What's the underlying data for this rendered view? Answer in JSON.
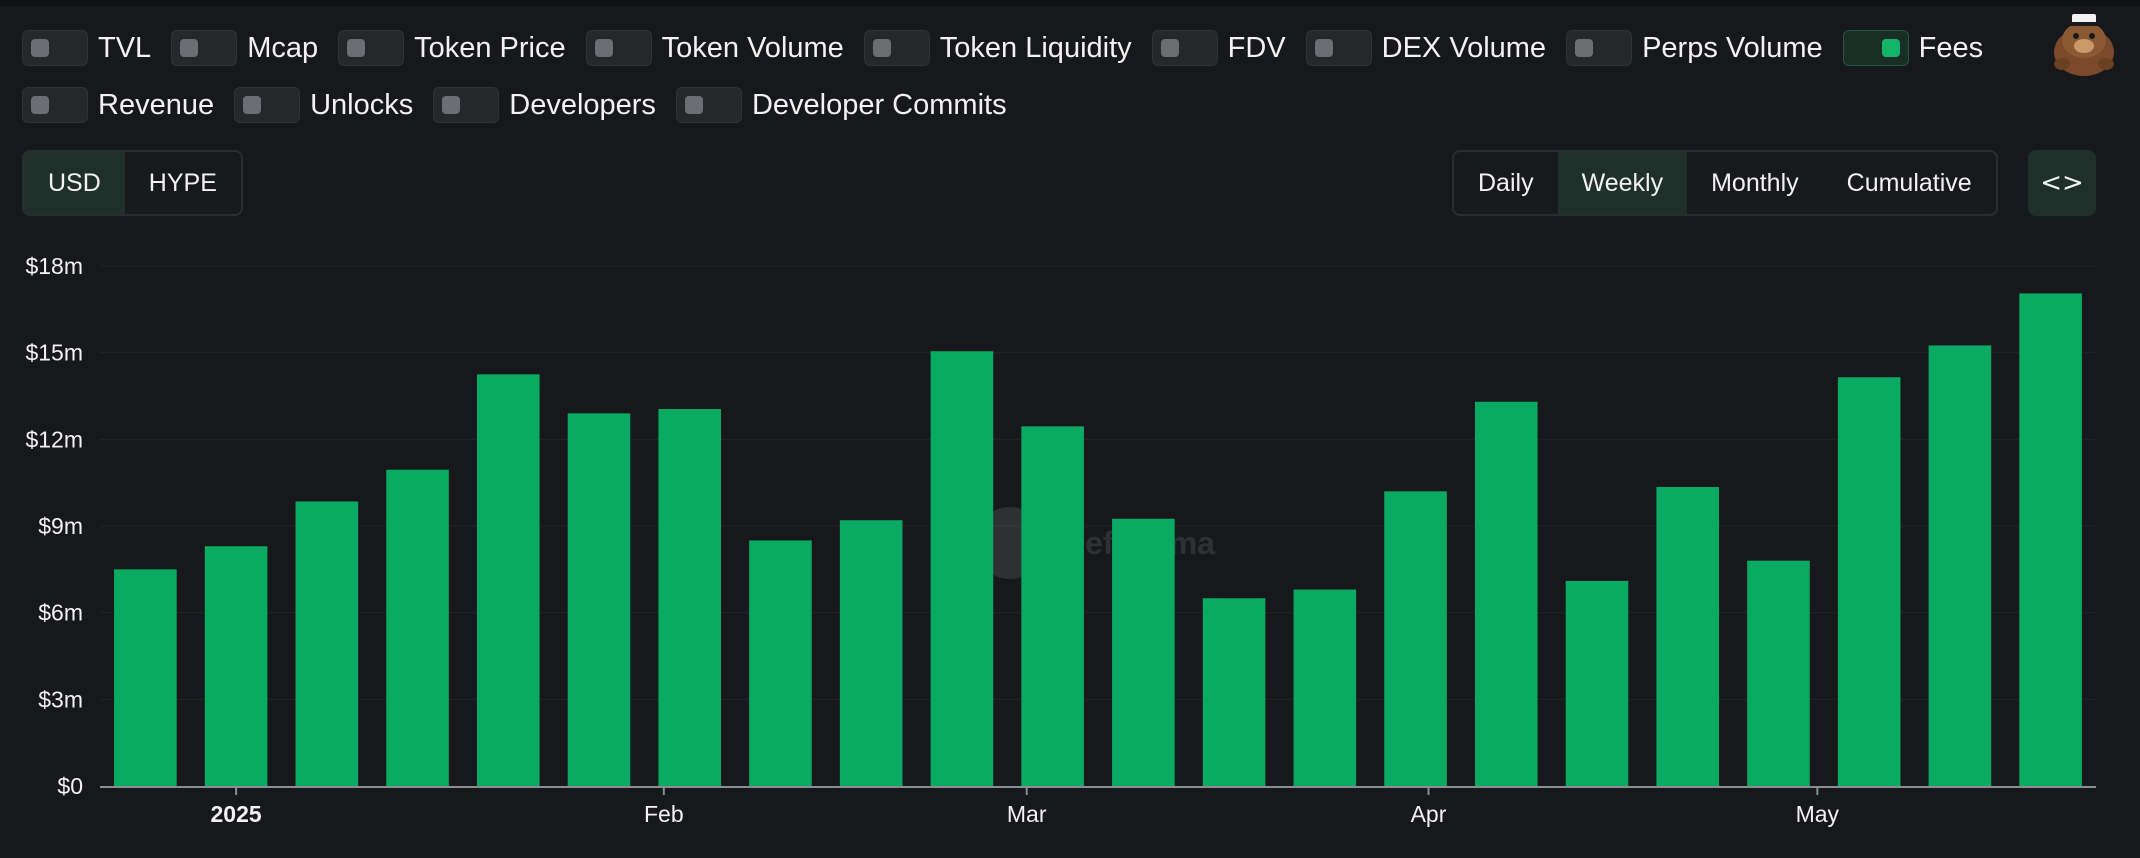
{
  "toggles_row1": [
    {
      "label": "TVL",
      "on": false
    },
    {
      "label": "Mcap",
      "on": false
    },
    {
      "label": "Token Price",
      "on": false
    },
    {
      "label": "Token Volume",
      "on": false
    },
    {
      "label": "Token Liquidity",
      "on": false
    },
    {
      "label": "FDV",
      "on": false
    },
    {
      "label": "DEX Volume",
      "on": false
    },
    {
      "label": "Perps Volume",
      "on": false
    },
    {
      "label": "Fees",
      "on": true
    }
  ],
  "toggles_row2": [
    {
      "label": "Revenue",
      "on": false
    },
    {
      "label": "Unlocks",
      "on": false
    },
    {
      "label": "Developers",
      "on": false
    },
    {
      "label": "Developer Commits",
      "on": false
    }
  ],
  "currency": {
    "options": [
      "USD",
      "HYPE"
    ],
    "selected": "USD"
  },
  "period": {
    "options": [
      "Daily",
      "Weekly",
      "Monthly",
      "Cumulative"
    ],
    "selected": "Weekly"
  },
  "embed_label": "<>",
  "colors": {
    "bar": "#0aaa62",
    "accent": "#13b46a",
    "background": "#17181b"
  },
  "chart_data": {
    "type": "bar",
    "title": "",
    "xlabel": "",
    "ylabel": "",
    "ylim": [
      0,
      18000000
    ],
    "yticks": [
      {
        "value": 0,
        "label": "$0"
      },
      {
        "value": 3000000,
        "label": "$3m"
      },
      {
        "value": 6000000,
        "label": "$6m"
      },
      {
        "value": 9000000,
        "label": "$9m"
      },
      {
        "value": 12000000,
        "label": "$12m"
      },
      {
        "value": 15000000,
        "label": "$15m"
      },
      {
        "value": 18000000,
        "label": "$18m"
      }
    ],
    "xticks": [
      {
        "label": "2025",
        "bold": true,
        "date": "2024-12-30"
      },
      {
        "label": "Feb",
        "bold": false,
        "date": "2025-02-01"
      },
      {
        "label": "Mar",
        "bold": false,
        "date": "2025-03-01"
      },
      {
        "label": "Apr",
        "bold": false,
        "date": "2025-04-01"
      },
      {
        "label": "May",
        "bold": false,
        "date": "2025-05-01"
      }
    ],
    "grid": true,
    "legend": "none",
    "series": [
      {
        "x": [
          "2024-12-23",
          "2024-12-30",
          "2025-01-06",
          "2025-01-13",
          "2025-01-20",
          "2025-01-27",
          "2025-02-03",
          "2025-02-10",
          "2025-02-17",
          "2025-02-24",
          "2025-03-03",
          "2025-03-10",
          "2025-03-17",
          "2025-03-24",
          "2025-03-31",
          "2025-04-07",
          "2025-04-14",
          "2025-04-21",
          "2025-04-28",
          "2025-05-05",
          "2025-05-12",
          "2025-05-19"
        ],
        "values": [
          7500000,
          8300000,
          9850000,
          10950000,
          14250000,
          12900000,
          13050000,
          8500000,
          9200000,
          15050000,
          12450000,
          9250000,
          6500000,
          6800000,
          10200000,
          13300000,
          7100000,
          10350000,
          7800000,
          14150000,
          15250000,
          17050000
        ]
      }
    ]
  }
}
